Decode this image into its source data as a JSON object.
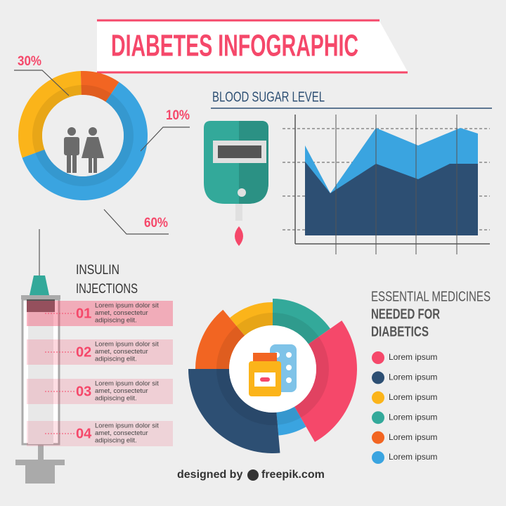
{
  "title": "DIABETES INFOGRAPHIC",
  "population": {
    "values": [
      30,
      10,
      60
    ],
    "value_labels": [
      "30%",
      "10%",
      "60%"
    ],
    "colors": [
      "#fbb41a",
      "#f26522",
      "#3aa4e0"
    ]
  },
  "blood_sugar": {
    "title": "BLOOD SUGAR LEVEL"
  },
  "insulin": {
    "title": [
      "INSULIN",
      "INJECTIONS"
    ],
    "items": [
      {
        "number": "01",
        "text": [
          "Lorem ipsum dolor sit",
          "amet, consectetur",
          "adipiscing elit."
        ]
      },
      {
        "number": "02",
        "text": [
          "Lorem ipsum dolor sit",
          "amet, consectetur",
          "adipiscing elit."
        ]
      },
      {
        "number": "03",
        "text": [
          "Lorem ipsum dolor sit",
          "amet, consectetur",
          "adipiscing elit."
        ]
      },
      {
        "number": "04",
        "text": [
          "Lorem ipsum dolor sit",
          "amet, consectetur",
          "adipiscing elit."
        ]
      }
    ]
  },
  "medicines": {
    "title": [
      "ESSENTIAL MEDICINES",
      "NEEDED FOR",
      "DIABETICS"
    ],
    "legend": [
      {
        "label": "Lorem ipsum",
        "color": "#f5486a"
      },
      {
        "label": "Lorem ipsum",
        "color": "#2d4f73"
      },
      {
        "label": "Lorem ipsum",
        "color": "#fbb41a"
      },
      {
        "label": "Lorem ipsum",
        "color": "#33a99a"
      },
      {
        "label": "Lorem ipsum",
        "color": "#f26522"
      },
      {
        "label": "Lorem ipsum",
        "color": "#3aa4e0"
      }
    ]
  },
  "footer": {
    "prefix": "designed by",
    "brand": "freepik.com"
  }
}
